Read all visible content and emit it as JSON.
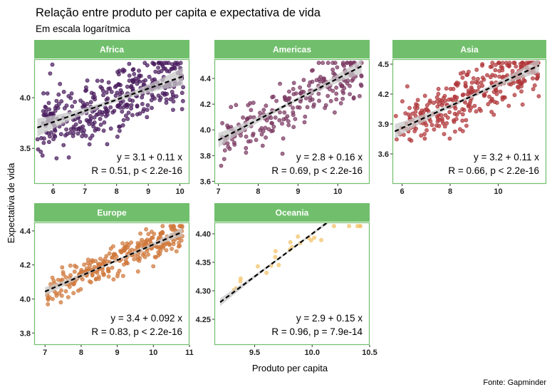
{
  "chart_data": {
    "type": "scatter",
    "title": "Relação entre produto per capita e expectativa de vida",
    "subtitle": "Em escala logarítmica",
    "xlabel": "Produto per capita",
    "ylabel": "Expectativa de vida",
    "caption": "Fonte: Gapminder",
    "colors": {
      "strip": "#71bf6c",
      "border": "#71bf6c",
      "ci_band": "#c8c8c8",
      "fit_line": "#000000"
    },
    "panels": [
      {
        "name": "Africa",
        "color": "#4a1d5e",
        "x_ticks": [
          6,
          7,
          8,
          9,
          10
        ],
        "y_ticks": [
          3.5,
          4.0
        ],
        "xlim": [
          5.4,
          10.3
        ],
        "ylim": [
          3.15,
          4.38
        ],
        "fit": {
          "intercept": 3.1,
          "slope": 0.11
        },
        "x_range": [
          5.5,
          10.1
        ],
        "y_spread": 0.16,
        "n_points": 380,
        "seed": 11,
        "equation": "y = 3.1 + 0.11 x",
        "stats": "R = 0.51, p < 2.2e-16"
      },
      {
        "name": "Americas",
        "color": "#7b3a63",
        "x_ticks": [
          7,
          8,
          9,
          10
        ],
        "y_ticks": [
          3.6,
          3.8,
          4.0,
          4.2,
          4.4
        ],
        "xlim": [
          6.9,
          10.8
        ],
        "ylim": [
          3.58,
          4.55
        ],
        "fit": {
          "intercept": 2.8,
          "slope": 0.16
        },
        "x_range": [
          7.0,
          10.6
        ],
        "y_spread": 0.1,
        "n_points": 230,
        "seed": 23,
        "equation": "y = 2.8 + 0.16 x",
        "stats": "R = 0.69, p < 2.2e-16"
      },
      {
        "name": "Asia",
        "color": "#b0373a",
        "x_ticks": [
          6,
          8,
          10
        ],
        "y_ticks": [
          3.6,
          3.9,
          4.2,
          4.5
        ],
        "xlim": [
          5.6,
          12.0
        ],
        "ylim": [
          3.3,
          4.55
        ],
        "fit": {
          "intercept": 3.2,
          "slope": 0.11
        },
        "x_range": [
          5.7,
          11.7
        ],
        "y_spread": 0.13,
        "n_points": 330,
        "seed": 37,
        "equation": "y = 3.2 + 0.11 x",
        "stats": "R = 0.66, p < 2.2e-16"
      },
      {
        "name": "Europe",
        "color": "#d0783c",
        "x_ticks": [
          7,
          8,
          9,
          10,
          11
        ],
        "y_ticks": [
          3.8,
          4.0,
          4.2,
          4.4
        ],
        "xlim": [
          6.7,
          11.0
        ],
        "ylim": [
          3.73,
          4.45
        ],
        "fit": {
          "intercept": 3.4,
          "slope": 0.092
        },
        "x_range": [
          7.0,
          10.8
        ],
        "y_spread": 0.045,
        "n_points": 300,
        "seed": 53,
        "equation": "y = 3.4 + 0.092 x",
        "stats": "R = 0.83, p < 2.2e-16"
      },
      {
        "name": "Oceania",
        "color": "#f2c36b",
        "x_ticks": [
          9.5,
          10.0,
          10.5
        ],
        "y_ticks": [
          4.25,
          4.3,
          4.35,
          4.4
        ],
        "xlim": [
          9.15,
          10.5
        ],
        "ylim": [
          4.205,
          4.42
        ],
        "fit": {
          "intercept": 2.9,
          "slope": 0.15
        },
        "x_range": [
          9.2,
          10.45
        ],
        "y_spread": 0.012,
        "n_points": 24,
        "seed": 71,
        "equation": "y = 2.9 + 0.15 x",
        "stats": "R = 0.96, p = 7.9e-14"
      }
    ]
  }
}
